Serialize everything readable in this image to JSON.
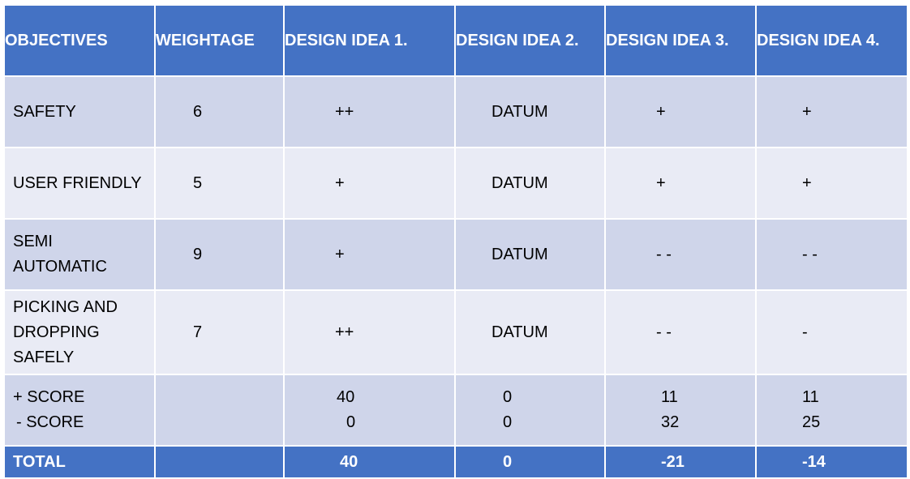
{
  "headers": [
    "OBJECTIVES",
    "WEIGHTAGE",
    "DESIGN IDEA 1.",
    "DESIGN IDEA 2.",
    "DESIGN IDEA 3.",
    "DESIGN IDEA 4."
  ],
  "rows": [
    {
      "objective": "SAFETY",
      "weight": "6",
      "idea1": "++",
      "idea2": "DATUM",
      "idea3": "+",
      "idea4": "+"
    },
    {
      "objective": "USER FRIENDLY",
      "weight": "5",
      "idea1": "+",
      "idea2": "DATUM",
      "idea3": "+",
      "idea4": "+"
    },
    {
      "objective_lines": [
        "SEMI",
        "AUTOMATIC"
      ],
      "weight": "9",
      "idea1": "+",
      "idea2": "DATUM",
      "idea3": "- -",
      "idea4": "- -"
    },
    {
      "objective_lines": [
        "PICKING AND",
        "DROPPING",
        "SAFELY"
      ],
      "weight": "7",
      "idea1": "++",
      "idea2": "DATUM",
      "idea3": "- -",
      "idea4": "-"
    }
  ],
  "scores": {
    "plus_label": "+ SCORE",
    "minus_label": "- SCORE",
    "plus": [
      "40",
      "0",
      "11",
      "11"
    ],
    "minus": [
      "0",
      "0",
      "32",
      "25"
    ]
  },
  "total": {
    "label": "TOTAL",
    "values": [
      "40",
      "0",
      "-21",
      "-14"
    ]
  },
  "colors": {
    "header_bg": "#4472c4",
    "row_dark": "#cfd5ea",
    "row_light": "#e9ebf5",
    "header_text": "#ffffff"
  }
}
